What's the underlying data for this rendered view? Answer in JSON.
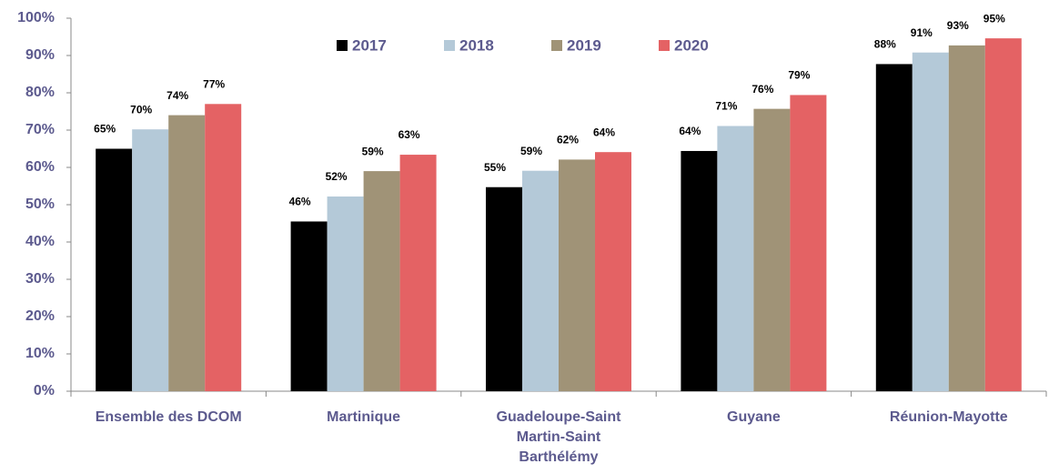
{
  "chart_data": {
    "type": "bar",
    "categories": [
      "Ensemble des DCOM",
      "Martinique",
      "Guadeloupe-Saint Martin-Saint Barthélémy",
      "Guyane",
      "Réunion-Mayotte"
    ],
    "series": [
      {
        "name": "2017",
        "color": "#000000",
        "values": [
          65,
          45.5,
          54.7,
          64.4,
          87.7
        ],
        "value_labels": [
          "65%",
          "46%",
          "55%",
          "64%",
          "88%"
        ]
      },
      {
        "name": "2018",
        "color": "#b4c9d8",
        "values": [
          70.2,
          52.2,
          59.1,
          71.1,
          90.8
        ],
        "value_labels": [
          "70%",
          "52%",
          "59%",
          "71%",
          "91%"
        ]
      },
      {
        "name": "2019",
        "color": "#a09377",
        "values": [
          74,
          59,
          62.1,
          75.7,
          92.7
        ],
        "value_labels": [
          "74%",
          "59%",
          "62%",
          "76%",
          "93%"
        ]
      },
      {
        "name": "2020",
        "color": "#e46264",
        "values": [
          77,
          63.4,
          64.1,
          79.4,
          94.6
        ],
        "value_labels": [
          "77%",
          "63%",
          "64%",
          "79%",
          "95%"
        ]
      }
    ],
    "ylim": [
      0,
      100
    ],
    "yticks": [
      {
        "value": 0,
        "label": "0%"
      },
      {
        "value": 10,
        "label": "10%"
      },
      {
        "value": 20,
        "label": "20%"
      },
      {
        "value": 30,
        "label": "30%"
      },
      {
        "value": 40,
        "label": "40%"
      },
      {
        "value": 50,
        "label": "50%"
      },
      {
        "value": 60,
        "label": "60%"
      },
      {
        "value": 70,
        "label": "70%"
      },
      {
        "value": 80,
        "label": "80%"
      },
      {
        "value": 90,
        "label": "90%"
      },
      {
        "value": 100,
        "label": "100%"
      }
    ],
    "grid": false,
    "legend": "top"
  }
}
